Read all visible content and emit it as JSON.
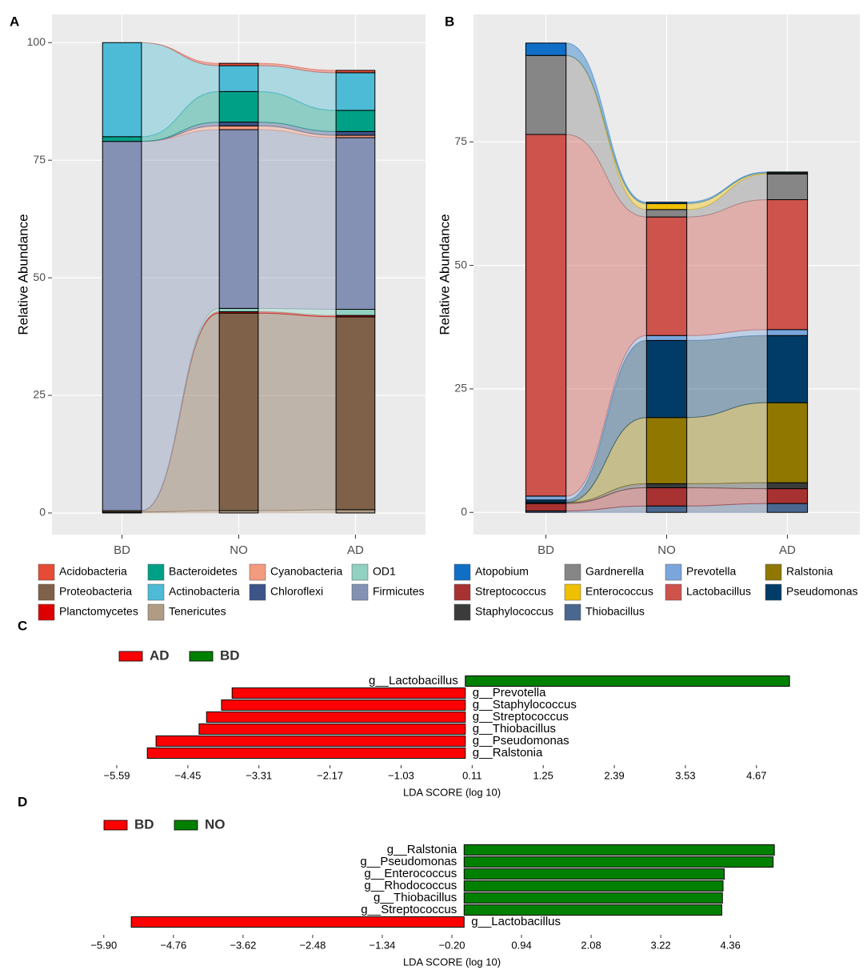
{
  "chart_data": [
    {
      "label": "A",
      "type": "alluvial",
      "categories": [
        "BD",
        "NO",
        "AD"
      ],
      "ylabel": "Relative Abundance",
      "ylim": [
        -4.6,
        106
      ],
      "yticks": [
        0,
        25,
        50,
        75,
        100
      ],
      "grid": true,
      "series": [
        {
          "name": "Acidobacteria",
          "color": "#e64b35",
          "values": [
            0,
            0.5,
            0.5
          ]
        },
        {
          "name": "Bacteroidetes",
          "color": "#00a087",
          "values": [
            1,
            6.5,
            4.5
          ]
        },
        {
          "name": "Cyanobacteria",
          "color": "#f39b7f",
          "values": [
            0,
            0.8,
            0.5
          ]
        },
        {
          "name": "OD1",
          "color": "#91d1c2",
          "values": [
            0,
            0.7,
            1.3
          ]
        },
        {
          "name": "Proteobacteria",
          "color": "#7e6148",
          "values": [
            0.3,
            42,
            41
          ]
        },
        {
          "name": "Actinobacteria",
          "color": "#4dbbd5",
          "values": [
            20,
            5.5,
            8
          ]
        },
        {
          "name": "Chloroflexi",
          "color": "#3c5488",
          "values": [
            0,
            0.8,
            0.8
          ]
        },
        {
          "name": "Firmicutes",
          "color": "#8491b4",
          "values": [
            78.5,
            38,
            36.5
          ]
        },
        {
          "name": "Planctomycetes",
          "color": "#dc0000",
          "values": [
            0,
            0.3,
            0.3
          ]
        },
        {
          "name": "Tenericutes",
          "color": "#b09c85",
          "values": [
            0.2,
            0.5,
            0.7
          ]
        }
      ]
    },
    {
      "label": "B",
      "type": "alluvial",
      "categories": [
        "BD",
        "NO",
        "AD"
      ],
      "ylabel": "Relative Abundance",
      "ylim": [
        -4.5,
        100.8
      ],
      "yticks": [
        0,
        25,
        50,
        75
      ],
      "grid": true,
      "series": [
        {
          "name": "Atopobium",
          "color": "#0f6fc6",
          "values": [
            2.5,
            0.3,
            0.2
          ]
        },
        {
          "name": "Gardnerella",
          "color": "#868686",
          "values": [
            16,
            1.5,
            5.2
          ]
        },
        {
          "name": "Prevotella",
          "color": "#7aa6dc",
          "values": [
            0.8,
            1,
            1.2
          ]
        },
        {
          "name": "Ralstonia",
          "color": "#8f7700",
          "values": [
            0,
            13.4,
            16.2
          ]
        },
        {
          "name": "Streptococcus",
          "color": "#a83232",
          "values": [
            1.5,
            3.7,
            3
          ]
        },
        {
          "name": "Enterococcus",
          "color": "#efc000",
          "values": [
            0,
            1.2,
            0.2
          ]
        },
        {
          "name": "Lactobacillus",
          "color": "#cd534c",
          "values": [
            73.2,
            24,
            26.3
          ]
        },
        {
          "name": "Pseudomonas",
          "color": "#003c67",
          "values": [
            0.5,
            15.6,
            13.6
          ]
        },
        {
          "name": "Staphylococcus",
          "color": "#3b3b3b",
          "values": [
            0.2,
            0.8,
            1.2
          ]
        },
        {
          "name": "Thiobacillus",
          "color": "#4a6790",
          "values": [
            0.3,
            1.3,
            1.8
          ]
        }
      ]
    },
    {
      "label": "C",
      "type": "bar",
      "orientation": "horizontal",
      "legend": [
        {
          "name": "AD",
          "color": "#ff0000"
        },
        {
          "name": "BD",
          "color": "#008000"
        }
      ],
      "categories": [
        "g__Lactobacillus",
        "g__Prevotella",
        "g__Staphylococcus",
        "g__Streptococcus",
        "g__Thiobacillus",
        "g__Pseudomonas",
        "g__Ralstonia"
      ],
      "values": [
        5.2,
        -3.74,
        -3.91,
        -4.15,
        -4.27,
        -4.96,
        -5.1
      ],
      "xlabel": "LDA SCORE (log 10)",
      "xlim": [
        -6.18,
        5.75
      ],
      "xticks": [
        {
          "value": -5.59,
          "label": "−5.59"
        },
        {
          "value": -4.45,
          "label": "−4.45"
        },
        {
          "value": -3.31,
          "label": "−3.31"
        },
        {
          "value": -2.17,
          "label": "−2.17"
        },
        {
          "value": -1.03,
          "label": "−1.03"
        },
        0.11,
        1.25,
        2.39,
        3.53,
        4.67
      ]
    },
    {
      "label": "D",
      "type": "bar",
      "orientation": "horizontal",
      "legend": [
        {
          "name": "BD",
          "color": "#ff0000"
        },
        {
          "name": "NO",
          "color": "#008000"
        }
      ],
      "categories": [
        "g__Ralstonia",
        "g__Pseudomonas",
        "g__Enterococcus",
        "g__Rhodococcus",
        "g__Thiobacillus",
        "g__Streptococcus",
        "g__Lactobacillus"
      ],
      "values": [
        5.08,
        5.06,
        4.26,
        4.24,
        4.23,
        4.22,
        -5.45
      ],
      "xlabel": "LDA SCORE (log 10)",
      "xlim": [
        -6.29,
        5.89
      ],
      "xticks": [
        {
          "value": -5.9,
          "label": "−5.90"
        },
        {
          "value": -4.76,
          "label": "−4.76"
        },
        {
          "value": -3.62,
          "label": "−3.62"
        },
        {
          "value": -2.48,
          "label": "−2.48"
        },
        {
          "value": -1.34,
          "label": "−1.34"
        },
        {
          "value": -0.2,
          "label": "−0.20"
        },
        0.94,
        2.08,
        3.22,
        4.36
      ]
    }
  ]
}
